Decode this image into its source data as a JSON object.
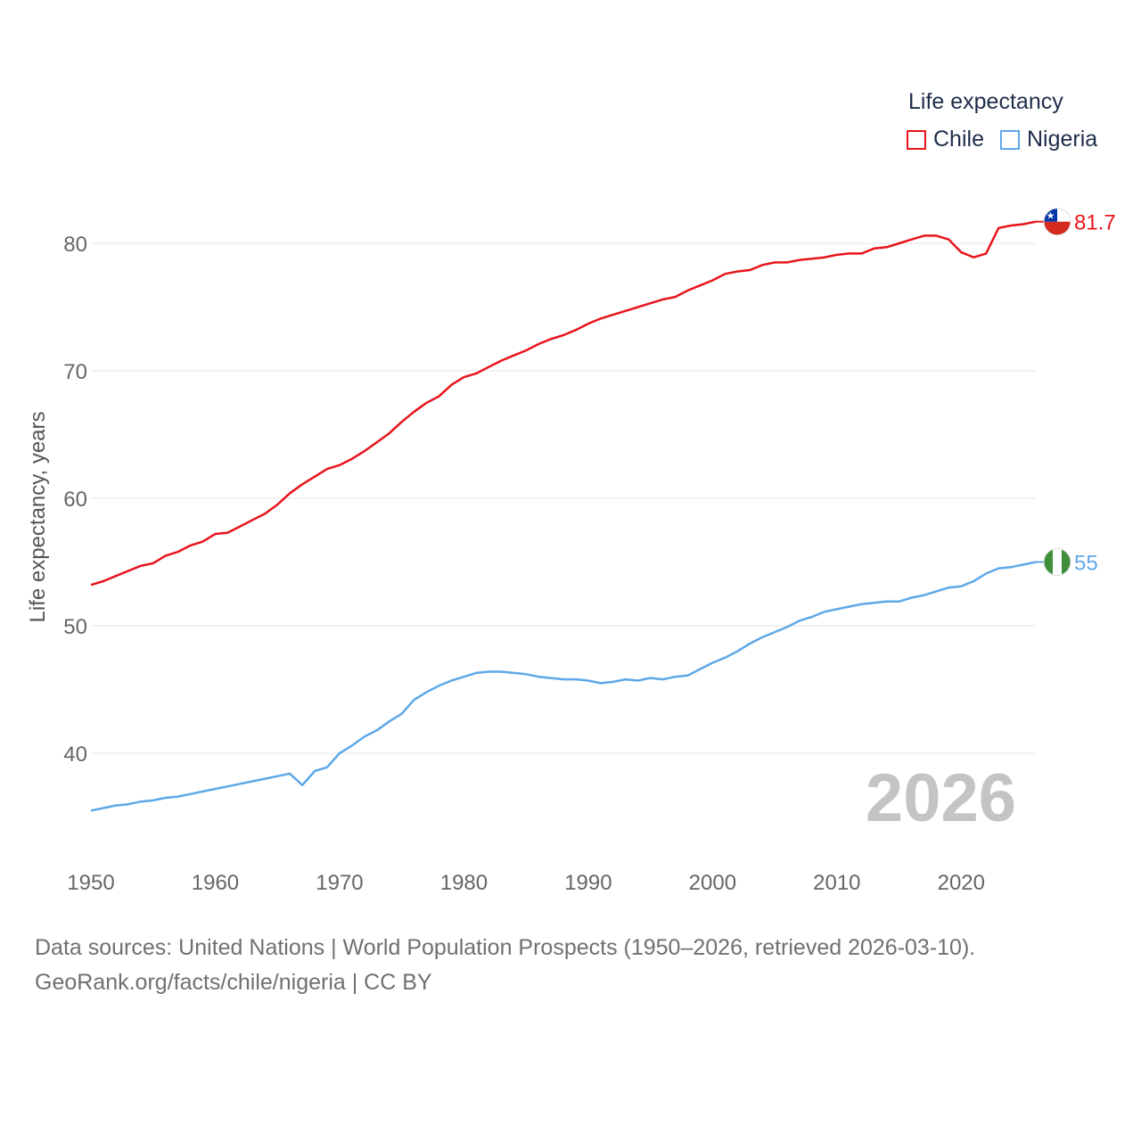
{
  "chart_data": {
    "type": "line",
    "ylabel": "Life expectancy, years",
    "xlabel": "",
    "xlim": [
      1950,
      2026
    ],
    "ylim": [
      33,
      85
    ],
    "x_ticks": [
      1950,
      1960,
      1970,
      1980,
      1990,
      2000,
      2010,
      2020
    ],
    "y_ticks": [
      40,
      50,
      60,
      70,
      80
    ],
    "grid": true,
    "legend_title": "Life expectancy",
    "legend_position": "top-right",
    "current_year": "2026",
    "colors": {
      "Chile": "#e8141c",
      "Nigeria": "#5ea8e8"
    },
    "series": [
      {
        "name": "Chile",
        "end_label": "81.7",
        "flag": "chile-flag",
        "points": [
          [
            1950,
            53.2
          ],
          [
            1951,
            53.5
          ],
          [
            1952,
            53.9
          ],
          [
            1953,
            54.3
          ],
          [
            1954,
            54.7
          ],
          [
            1955,
            54.9
          ],
          [
            1956,
            55.5
          ],
          [
            1957,
            55.8
          ],
          [
            1958,
            56.3
          ],
          [
            1959,
            56.6
          ],
          [
            1960,
            57.2
          ],
          [
            1961,
            57.3
          ],
          [
            1962,
            57.8
          ],
          [
            1963,
            58.3
          ],
          [
            1964,
            58.8
          ],
          [
            1965,
            59.5
          ],
          [
            1966,
            60.4
          ],
          [
            1967,
            61.1
          ],
          [
            1968,
            61.7
          ],
          [
            1969,
            62.3
          ],
          [
            1970,
            62.6
          ],
          [
            1971,
            63.1
          ],
          [
            1972,
            63.7
          ],
          [
            1973,
            64.4
          ],
          [
            1974,
            65.1
          ],
          [
            1975,
            66.0
          ],
          [
            1976,
            66.8
          ],
          [
            1977,
            67.5
          ],
          [
            1978,
            68.0
          ],
          [
            1979,
            68.9
          ],
          [
            1980,
            69.5
          ],
          [
            1981,
            69.8
          ],
          [
            1982,
            70.3
          ],
          [
            1983,
            70.8
          ],
          [
            1984,
            71.2
          ],
          [
            1985,
            71.6
          ],
          [
            1986,
            72.1
          ],
          [
            1987,
            72.5
          ],
          [
            1988,
            72.8
          ],
          [
            1989,
            73.2
          ],
          [
            1990,
            73.7
          ],
          [
            1991,
            74.1
          ],
          [
            1992,
            74.4
          ],
          [
            1993,
            74.7
          ],
          [
            1994,
            75.0
          ],
          [
            1995,
            75.3
          ],
          [
            1996,
            75.6
          ],
          [
            1997,
            75.8
          ],
          [
            1998,
            76.3
          ],
          [
            1999,
            76.7
          ],
          [
            2000,
            77.1
          ],
          [
            2001,
            77.6
          ],
          [
            2002,
            77.8
          ],
          [
            2003,
            77.9
          ],
          [
            2004,
            78.3
          ],
          [
            2005,
            78.5
          ],
          [
            2006,
            78.5
          ],
          [
            2007,
            78.7
          ],
          [
            2008,
            78.8
          ],
          [
            2009,
            78.9
          ],
          [
            2010,
            79.1
          ],
          [
            2011,
            79.2
          ],
          [
            2012,
            79.2
          ],
          [
            2013,
            79.6
          ],
          [
            2014,
            79.7
          ],
          [
            2015,
            80.0
          ],
          [
            2016,
            80.3
          ],
          [
            2017,
            80.6
          ],
          [
            2018,
            80.6
          ],
          [
            2019,
            80.3
          ],
          [
            2020,
            79.3
          ],
          [
            2021,
            78.9
          ],
          [
            2022,
            79.2
          ],
          [
            2023,
            81.2
          ],
          [
            2024,
            81.4
          ],
          [
            2025,
            81.5
          ],
          [
            2026,
            81.7
          ]
        ]
      },
      {
        "name": "Nigeria",
        "end_label": "55",
        "flag": "nigeria-flag",
        "points": [
          [
            1950,
            35.5
          ],
          [
            1951,
            35.7
          ],
          [
            1952,
            35.9
          ],
          [
            1953,
            36.0
          ],
          [
            1954,
            36.2
          ],
          [
            1955,
            36.3
          ],
          [
            1956,
            36.5
          ],
          [
            1957,
            36.6
          ],
          [
            1958,
            36.8
          ],
          [
            1959,
            37.0
          ],
          [
            1960,
            37.2
          ],
          [
            1961,
            37.4
          ],
          [
            1962,
            37.6
          ],
          [
            1963,
            37.8
          ],
          [
            1964,
            38.0
          ],
          [
            1965,
            38.2
          ],
          [
            1966,
            38.4
          ],
          [
            1967,
            37.5
          ],
          [
            1968,
            38.6
          ],
          [
            1969,
            38.9
          ],
          [
            1970,
            40.0
          ],
          [
            1971,
            40.6
          ],
          [
            1972,
            41.3
          ],
          [
            1973,
            41.8
          ],
          [
            1974,
            42.5
          ],
          [
            1975,
            43.1
          ],
          [
            1976,
            44.2
          ],
          [
            1977,
            44.8
          ],
          [
            1978,
            45.3
          ],
          [
            1979,
            45.7
          ],
          [
            1980,
            46.0
          ],
          [
            1981,
            46.3
          ],
          [
            1982,
            46.4
          ],
          [
            1983,
            46.4
          ],
          [
            1984,
            46.3
          ],
          [
            1985,
            46.2
          ],
          [
            1986,
            46.0
          ],
          [
            1987,
            45.9
          ],
          [
            1988,
            45.8
          ],
          [
            1989,
            45.8
          ],
          [
            1990,
            45.7
          ],
          [
            1991,
            45.5
          ],
          [
            1992,
            45.6
          ],
          [
            1993,
            45.8
          ],
          [
            1994,
            45.7
          ],
          [
            1995,
            45.9
          ],
          [
            1996,
            45.8
          ],
          [
            1997,
            46.0
          ],
          [
            1998,
            46.1
          ],
          [
            1999,
            46.6
          ],
          [
            2000,
            47.1
          ],
          [
            2001,
            47.5
          ],
          [
            2002,
            48.0
          ],
          [
            2003,
            48.6
          ],
          [
            2004,
            49.1
          ],
          [
            2005,
            49.5
          ],
          [
            2006,
            49.9
          ],
          [
            2007,
            50.4
          ],
          [
            2008,
            50.7
          ],
          [
            2009,
            51.1
          ],
          [
            2010,
            51.3
          ],
          [
            2011,
            51.5
          ],
          [
            2012,
            51.7
          ],
          [
            2013,
            51.8
          ],
          [
            2014,
            51.9
          ],
          [
            2015,
            51.9
          ],
          [
            2016,
            52.2
          ],
          [
            2017,
            52.4
          ],
          [
            2018,
            52.7
          ],
          [
            2019,
            53.0
          ],
          [
            2020,
            53.1
          ],
          [
            2021,
            53.5
          ],
          [
            2022,
            54.1
          ],
          [
            2023,
            54.5
          ],
          [
            2024,
            54.6
          ],
          [
            2025,
            54.8
          ],
          [
            2026,
            55.0
          ]
        ]
      }
    ]
  },
  "footer": {
    "line1": "Data sources: United Nations | World Population Prospects (1950–2026, retrieved 2026-03-10).",
    "line2": "GeoRank.org/facts/chile/nigeria | CC BY"
  }
}
